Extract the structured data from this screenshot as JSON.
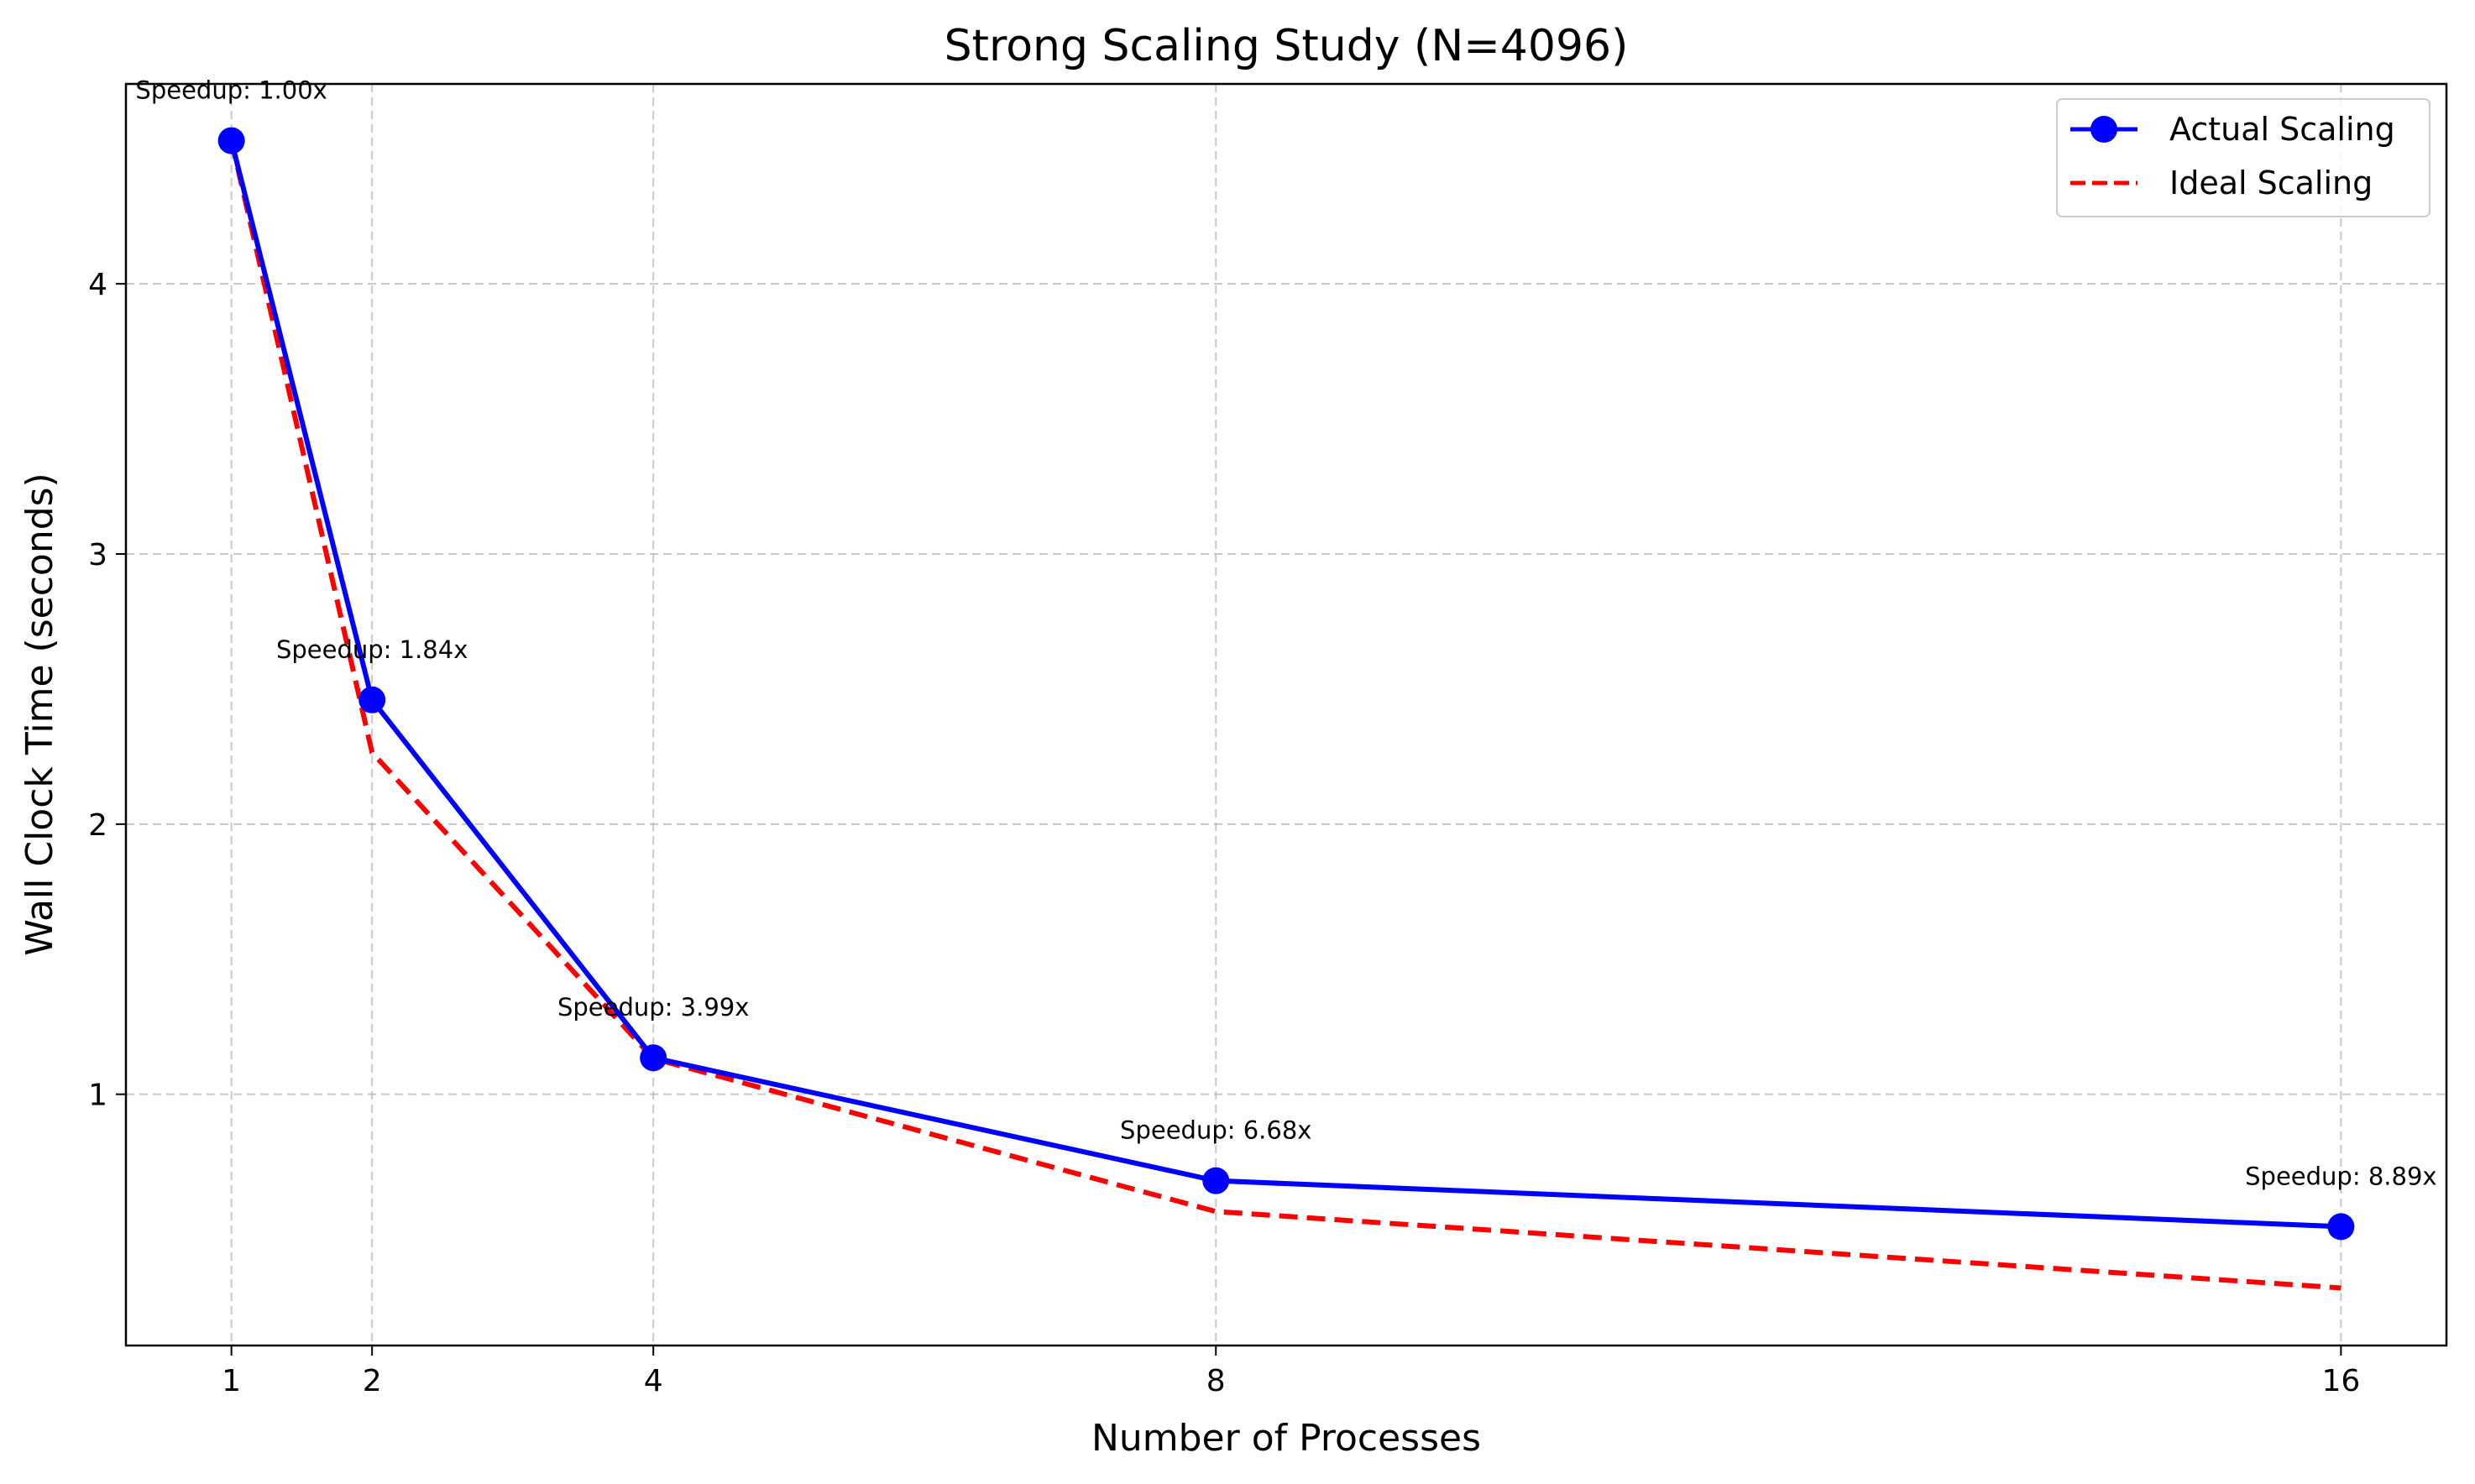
{
  "chart_data": {
    "type": "line",
    "title": "Strong Scaling Study (N=4096)",
    "xlabel": "Number of Processes",
    "ylabel": "Wall Clock Time (seconds)",
    "x": [
      1,
      2,
      4,
      8,
      16
    ],
    "x_tick_labels": [
      "1",
      "2",
      "4",
      "8",
      "16"
    ],
    "y_ticks": [
      1,
      2,
      3,
      4
    ],
    "y_tick_labels": [
      "1",
      "2",
      "3",
      "4"
    ],
    "xlim": [
      0.25,
      16.75
    ],
    "ylim": [
      0.07,
      4.74
    ],
    "grid": true,
    "legend_placement": "top-right",
    "series": [
      {
        "name": "Actual Scaling",
        "values": [
          4.53,
          2.46,
          1.135,
          0.68,
          0.51
        ],
        "color": "#0000ff",
        "style": "solid",
        "marker": "circle"
      },
      {
        "name": "Ideal Scaling",
        "values": [
          4.53,
          2.265,
          1.1325,
          0.566,
          0.283
        ],
        "color": "#ff0000",
        "style": "dashed",
        "marker": "none"
      }
    ],
    "annotations": [
      "Speedup: 1.00x",
      "Speedup: 1.84x",
      "Speedup: 3.99x",
      "Speedup: 6.68x",
      "Speedup: 8.89x"
    ]
  }
}
